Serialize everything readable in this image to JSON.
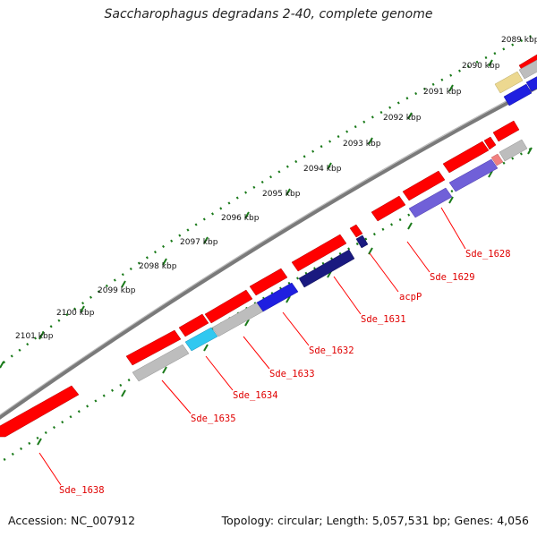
{
  "title": "Saccharophagus degradans 2-40, complete genome",
  "footer": {
    "accession": "Accession: NC_007912",
    "stats": "Topology: circular; Length: 5,057,531 bp; Genes: 4,056"
  },
  "ticks": [
    "2089 kbp",
    "2090 kbp",
    "2091 kbp",
    "2092 kbp",
    "2093 kbp",
    "2094 kbp",
    "2095 kbp",
    "2096 kbp",
    "2097 kbp",
    "2098 kbp",
    "2099 kbp",
    "2100 kbp",
    "2101 kbp"
  ],
  "gene_labels": [
    "Sde_1628",
    "Sde_1629",
    "acpP",
    "Sde_1631",
    "Sde_1632",
    "Sde_1633",
    "Sde_1634",
    "Sde_1635",
    "Sde_1638"
  ],
  "colors": {
    "cds": "#ff0000",
    "grey_feature": "#bdbdbd",
    "blue_feature": "#1f1fe0",
    "light_blue_feature": "#30c8f0",
    "purple_feature": "#7060d8",
    "navy_feature": "#1a1a80",
    "yellow_feature": "#ecd890",
    "backbone": "#808080",
    "tick_marks": "#1a7a1a"
  }
}
